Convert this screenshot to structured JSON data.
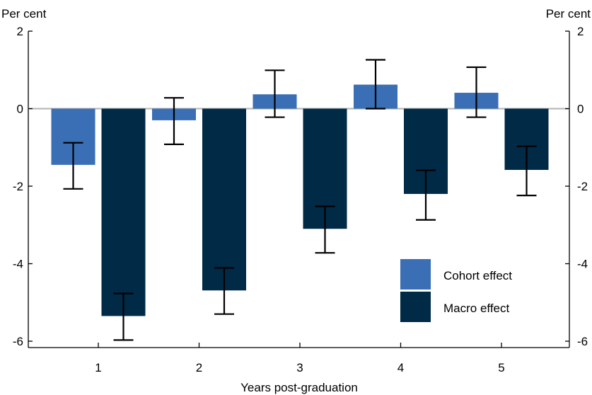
{
  "chart_data": {
    "type": "bar",
    "categories": [
      "1",
      "2",
      "3",
      "4",
      "5"
    ],
    "xlabel": "Years post-graduation",
    "ylabel_left": "Per cent",
    "ylabel_right": "Per cent",
    "ylim": [
      -6,
      2
    ],
    "yticks": [
      2,
      0,
      -2,
      -4,
      -6
    ],
    "ytick_labels": [
      "2",
      "0",
      "-2",
      "-4",
      "-6"
    ],
    "grid": false,
    "legend_position": "bottom-right",
    "series": [
      {
        "name": "Cohort effect",
        "color": "#3a6eb5",
        "values": [
          -1.45,
          -0.3,
          0.37,
          0.62,
          0.41
        ],
        "error_low": [
          -2.07,
          -0.92,
          -0.22,
          0.0,
          -0.22
        ],
        "error_high": [
          -0.88,
          0.28,
          0.99,
          1.26,
          1.07
        ]
      },
      {
        "name": "Macro effect",
        "color": "#002a46",
        "values": [
          -5.35,
          -4.69,
          -3.1,
          -2.2,
          -1.58
        ],
        "error_low": [
          -5.97,
          -5.3,
          -3.72,
          -2.87,
          -2.24
        ],
        "error_high": [
          -4.77,
          -4.11,
          -2.52,
          -1.59,
          -0.97
        ]
      }
    ]
  }
}
